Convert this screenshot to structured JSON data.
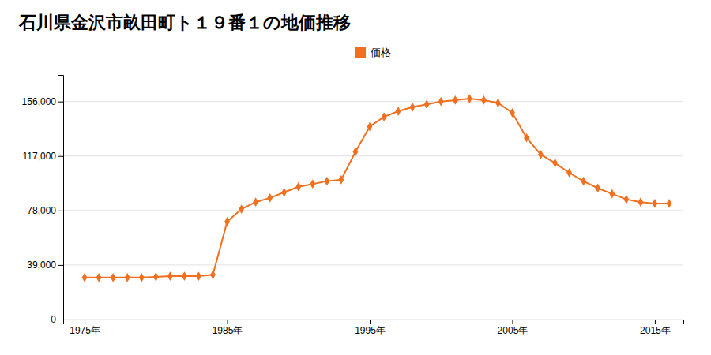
{
  "chart_data": {
    "type": "line",
    "title": "石川県金沢市畝田町ト１９番１の地価推移",
    "x": [
      1975,
      1976,
      1977,
      1978,
      1979,
      1980,
      1981,
      1982,
      1983,
      1984,
      1985,
      1986,
      1987,
      1988,
      1989,
      1990,
      1991,
      1992,
      1993,
      1994,
      1995,
      1996,
      1997,
      1998,
      1999,
      2000,
      2001,
      2002,
      2003,
      2004,
      2005,
      2006,
      2007,
      2008,
      2009,
      2010,
      2011,
      2012,
      2013,
      2014,
      2015,
      2016
    ],
    "series": [
      {
        "name": "価格",
        "color": "#f07020",
        "marker": "diamond",
        "values": [
          30000,
          30000,
          30000,
          30000,
          30000,
          30500,
          31000,
          31000,
          31000,
          32000,
          70000,
          79000,
          84000,
          87000,
          91000,
          95000,
          97000,
          99000,
          100000,
          120000,
          138000,
          145000,
          149000,
          152000,
          154000,
          156000,
          157000,
          158000,
          157000,
          155000,
          148000,
          130000,
          118000,
          112000,
          105000,
          99000,
          94000,
          90000,
          86000,
          84000,
          83000,
          83000
        ]
      }
    ],
    "xlim": [
      1973.5,
      2017
    ],
    "ylim": [
      0,
      175000
    ],
    "xticks": [
      {
        "value": 1975,
        "label": "1975年"
      },
      {
        "value": 1985,
        "label": "1985年"
      },
      {
        "value": 1995,
        "label": "1995年"
      },
      {
        "value": 2005,
        "label": "2005年"
      },
      {
        "value": 2015,
        "label": "2015年"
      }
    ],
    "yticks": [
      0,
      {
        "value": 39000,
        "label": "39,000"
      },
      {
        "value": 78000,
        "label": "78,000"
      },
      {
        "value": 117000,
        "label": "117,000"
      },
      {
        "value": 156000,
        "label": "156,000"
      }
    ],
    "grid": "y",
    "legend": "top"
  }
}
